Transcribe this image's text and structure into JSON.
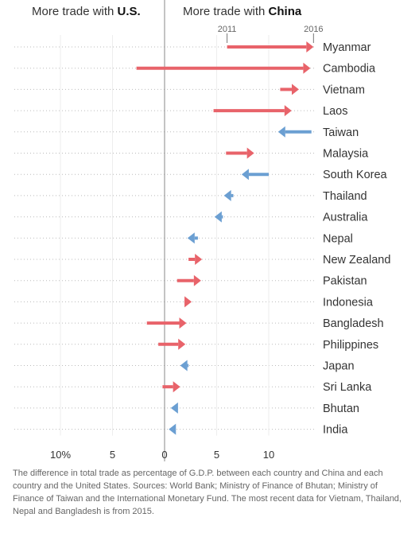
{
  "header": {
    "left_prefix": "More trade with ",
    "left_bold": "U.S.",
    "right_prefix": "More trade with ",
    "right_bold": "China"
  },
  "footnote": "The difference in total trade as percentage of G.D.P. between each country and China and each country and the United States. Sources: World Bank; Ministry of Finance of Bhutan; Ministry of Finance of Taiwan and the International Monetary Fund. The most recent data for Vietnam, Thailand, Nepal and Bangladesh is from 2015.",
  "colors": {
    "toward_china": "#e8636a",
    "toward_us": "#6b9fd2",
    "axis": "#888888",
    "grid": "#bbbbbb"
  },
  "chart_data": {
    "type": "arrow",
    "title": "",
    "xlabel": "",
    "ylabel": "",
    "xlim": [
      -15,
      15
    ],
    "x_ticks": [
      -10,
      -5,
      0,
      5,
      10
    ],
    "x_tick_labels": [
      "10%",
      "5",
      "0",
      "5",
      "10"
    ],
    "year_markers": [
      {
        "label": "2011",
        "value": 6
      },
      {
        "label": "2016",
        "value": 14.3
      }
    ],
    "series_years": [
      "2011",
      "2016"
    ],
    "countries": [
      "Myanmar",
      "Cambodia",
      "Vietnam",
      "Laos",
      "Taiwan",
      "Malaysia",
      "South Korea",
      "Thailand",
      "Australia",
      "Nepal",
      "New Zealand",
      "Pakistan",
      "Indonesia",
      "Bangladesh",
      "Philippines",
      "Japan",
      "Sri Lanka",
      "Bhutan",
      "India"
    ],
    "start": [
      6.0,
      -2.7,
      11.1,
      4.7,
      14.1,
      5.9,
      10.0,
      6.6,
      5.6,
      3.2,
      2.3,
      1.2,
      1.9,
      -1.7,
      -0.6,
      2.3,
      -0.2,
      1.3,
      0.9
    ],
    "end": [
      14.3,
      14.0,
      12.9,
      12.2,
      10.9,
      8.6,
      7.4,
      5.7,
      4.8,
      2.2,
      3.6,
      3.5,
      2.6,
      2.1,
      2.0,
      1.5,
      1.5,
      0.6,
      0.4
    ]
  }
}
